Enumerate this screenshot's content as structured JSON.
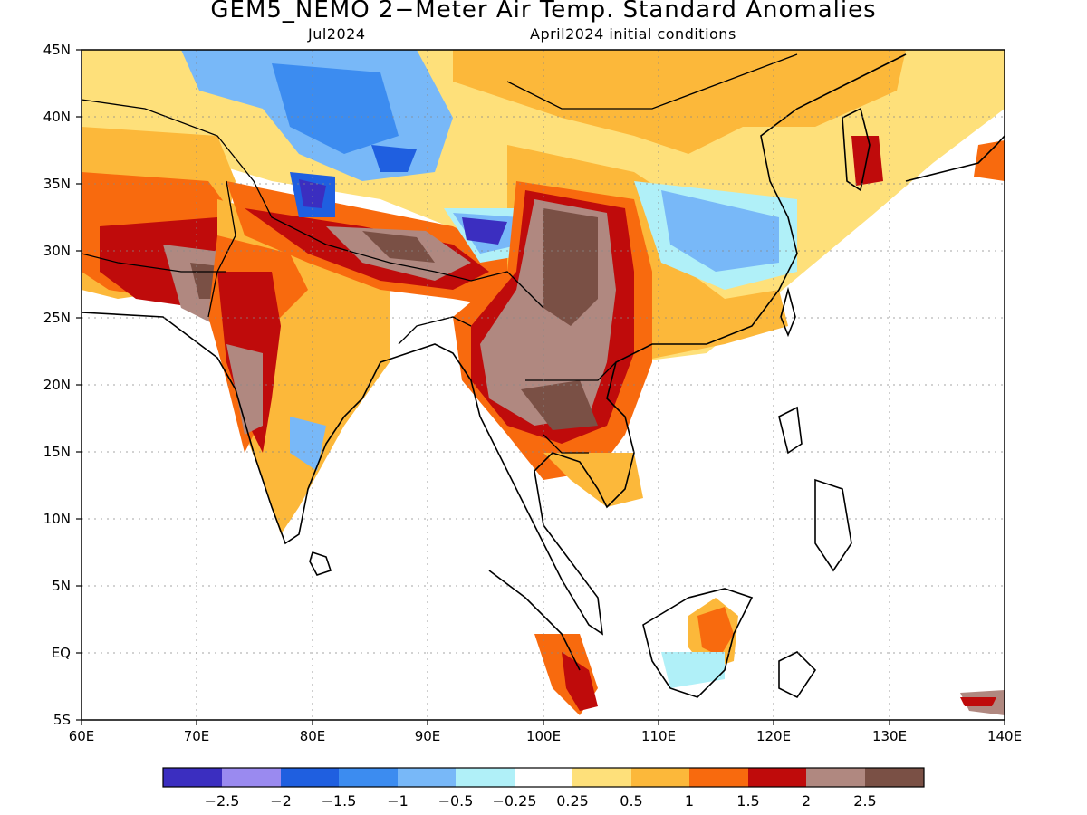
{
  "header": {
    "title": "GEM5_NEMO 2−Meter Air Temp. Standard Anomalies",
    "valid_month": "Jul2024",
    "init": "April2024 initial conditions"
  },
  "axes": {
    "lat_labels": [
      "45N",
      "40N",
      "35N",
      "30N",
      "25N",
      "20N",
      "15N",
      "10N",
      "5N",
      "EQ",
      "5S"
    ],
    "lon_labels": [
      "60E",
      "70E",
      "80E",
      "90E",
      "100E",
      "110E",
      "120E",
      "130E",
      "140E"
    ]
  },
  "colorbar": {
    "colors": [
      "#3b2ec0",
      "#9a8af0",
      "#1f5fe0",
      "#3c8cf0",
      "#78b8f8",
      "#b0f0f8",
      "#ffffff",
      "#fee07a",
      "#fcb83a",
      "#f86a0e",
      "#bf0b0b",
      "#b08880",
      "#7a5045"
    ],
    "labels": [
      "−2.5",
      "−2",
      "−1.5",
      "−1",
      "−0.5",
      "−0.25",
      "0.25",
      "0.5",
      "1",
      "1.5",
      "2",
      "2.5"
    ]
  }
}
